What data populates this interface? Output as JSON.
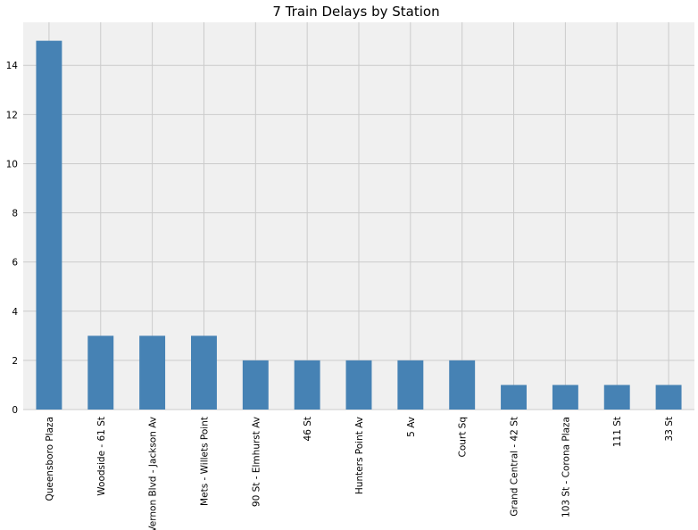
{
  "chart_data": {
    "type": "bar",
    "title": "7 Train Delays by Station",
    "xlabel": "",
    "ylabel": "",
    "categories": [
      "Queensboro Plaza",
      "Woodside - 61 St",
      "Vernon Blvd - Jackson Av",
      "Mets - Willets Point",
      "90 St - Elmhurst Av",
      "46 St",
      "Hunters Point Av",
      "5 Av",
      "Court Sq",
      "Grand Central - 42 St",
      "103 St - Corona Plaza",
      "111 St",
      "33 St"
    ],
    "values": [
      15,
      3,
      3,
      3,
      2,
      2,
      2,
      2,
      2,
      1,
      1,
      1,
      1
    ],
    "ylim": [
      0,
      15.75
    ],
    "yticks": [
      0,
      2,
      4,
      6,
      8,
      10,
      12,
      14
    ],
    "grid": true,
    "legend": "none",
    "colors": {
      "bar": "#4682b4",
      "background": "#f0f0f0",
      "grid": "#cbcbcb"
    }
  }
}
